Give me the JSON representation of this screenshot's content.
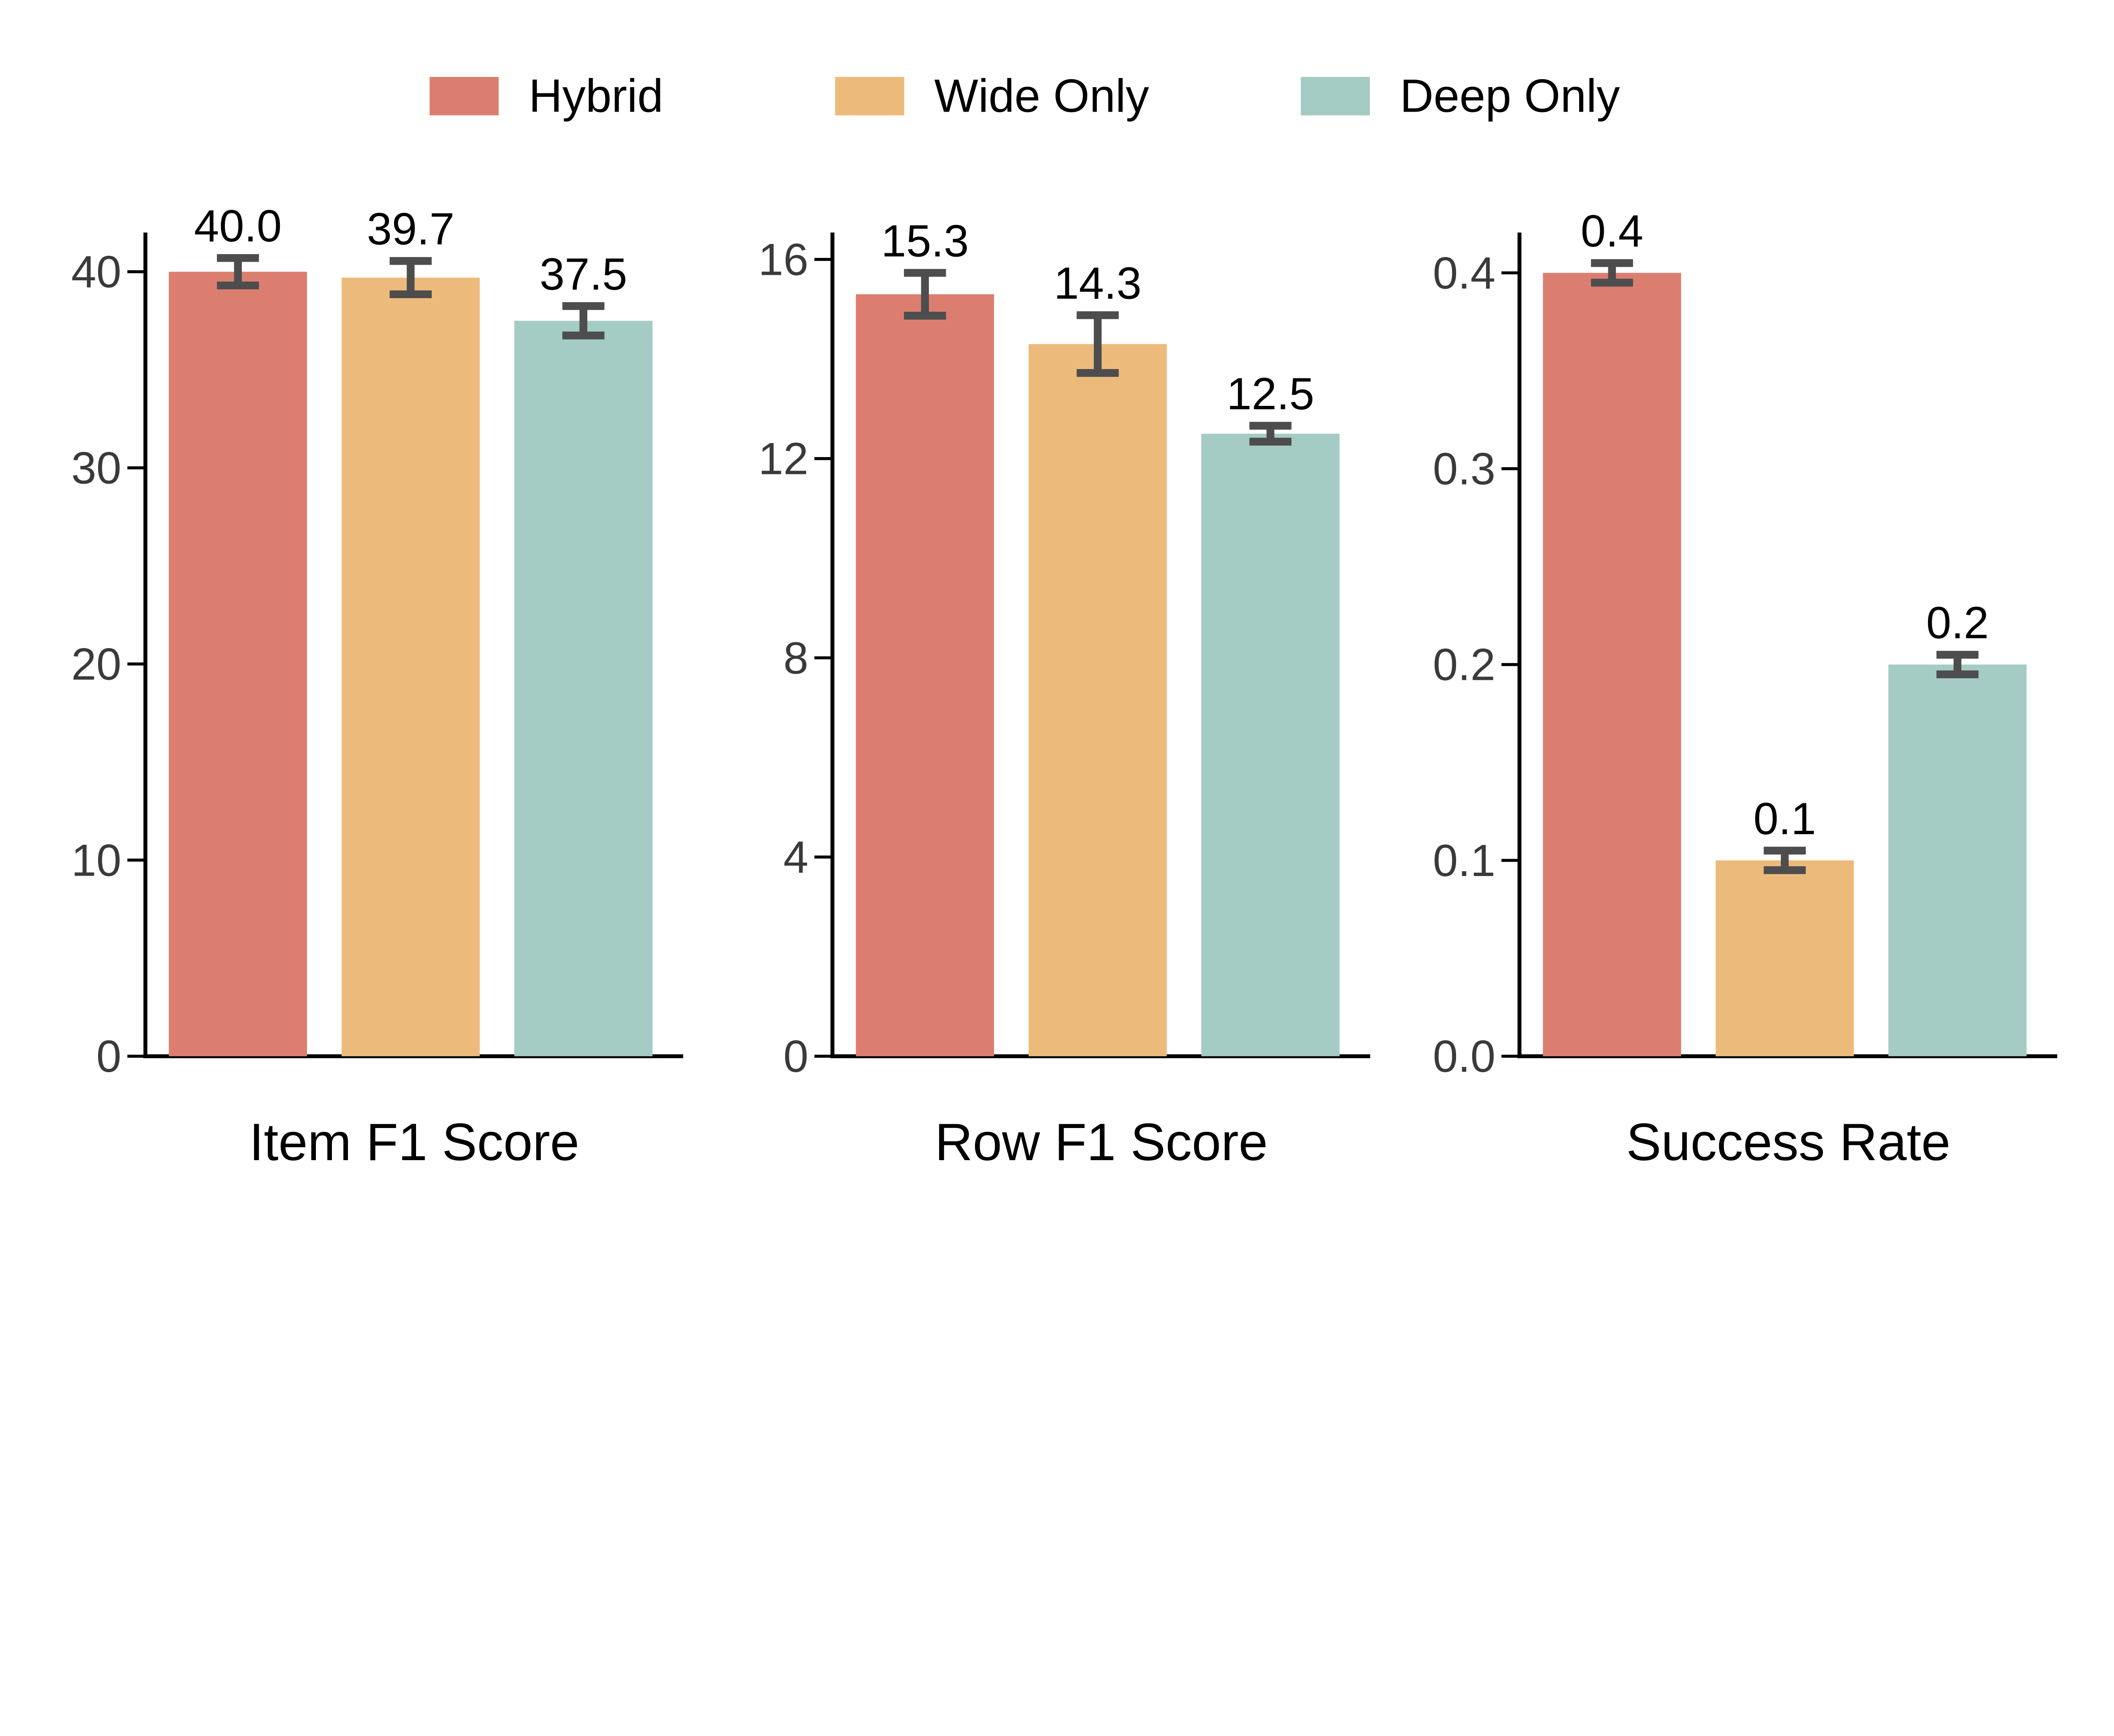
{
  "figure": {
    "background": "#FFFFFF"
  },
  "legend": {
    "items": [
      {
        "label": "Hybrid",
        "color": "#DB7E70"
      },
      {
        "label": "Wide Only",
        "color": "#ECBB7C"
      },
      {
        "label": "Deep Only",
        "color": "#A4CBC4"
      }
    ]
  },
  "colors": {
    "error_bar": "#4D4D4D",
    "spine": "#000000",
    "tick_label": "#3A3A3A",
    "text": "#000000",
    "background": "#FFFFFF"
  },
  "chart_data": [
    {
      "type": "bar",
      "title": "",
      "xlabel": "Item F1 Score",
      "ylabel": "",
      "categories": [
        "Hybrid",
        "Wide Only",
        "Deep Only"
      ],
      "values": [
        40.0,
        39.7,
        37.5
      ],
      "errors": [
        0.7,
        0.85,
        0.75
      ],
      "bar_labels": [
        "40.0",
        "39.7",
        "37.5"
      ],
      "yticks": [
        {
          "v": 0,
          "label": "0"
        },
        {
          "v": 10,
          "label": "10"
        },
        {
          "v": 20,
          "label": "20"
        },
        {
          "v": 30,
          "label": "30"
        },
        {
          "v": 40,
          "label": "40"
        }
      ],
      "ylim": [
        0,
        42.0
      ],
      "grid": false,
      "legend_position": "top-center"
    },
    {
      "type": "bar",
      "title": "",
      "xlabel": "Row F1 Score",
      "ylabel": "",
      "categories": [
        "Hybrid",
        "Wide Only",
        "Deep Only"
      ],
      "values": [
        15.3,
        14.3,
        12.5
      ],
      "errors": [
        0.43,
        0.58,
        0.16
      ],
      "bar_labels": [
        "15.3",
        "14.3",
        "12.5"
      ],
      "yticks": [
        {
          "v": 0,
          "label": "0"
        },
        {
          "v": 4,
          "label": "4"
        },
        {
          "v": 8,
          "label": "8"
        },
        {
          "v": 12,
          "label": "12"
        },
        {
          "v": 16,
          "label": "16"
        }
      ],
      "ylim": [
        0,
        16.54
      ],
      "grid": false,
      "legend_position": "top-center"
    },
    {
      "type": "bar",
      "title": "",
      "xlabel": "Success Rate",
      "ylabel": "",
      "categories": [
        "Hybrid",
        "Wide Only",
        "Deep Only"
      ],
      "values": [
        0.4,
        0.1,
        0.2
      ],
      "errors": [
        0.005,
        0.005,
        0.005
      ],
      "bar_labels": [
        "0.4",
        "0.1",
        "0.2"
      ],
      "yticks": [
        {
          "v": 0.0,
          "label": "0.0"
        },
        {
          "v": 0.1,
          "label": "0.1"
        },
        {
          "v": 0.2,
          "label": "0.2"
        },
        {
          "v": 0.3,
          "label": "0.3"
        },
        {
          "v": 0.4,
          "label": "0.4"
        }
      ],
      "ylim": [
        0,
        0.4206
      ],
      "grid": false,
      "legend_position": "top-center"
    }
  ]
}
